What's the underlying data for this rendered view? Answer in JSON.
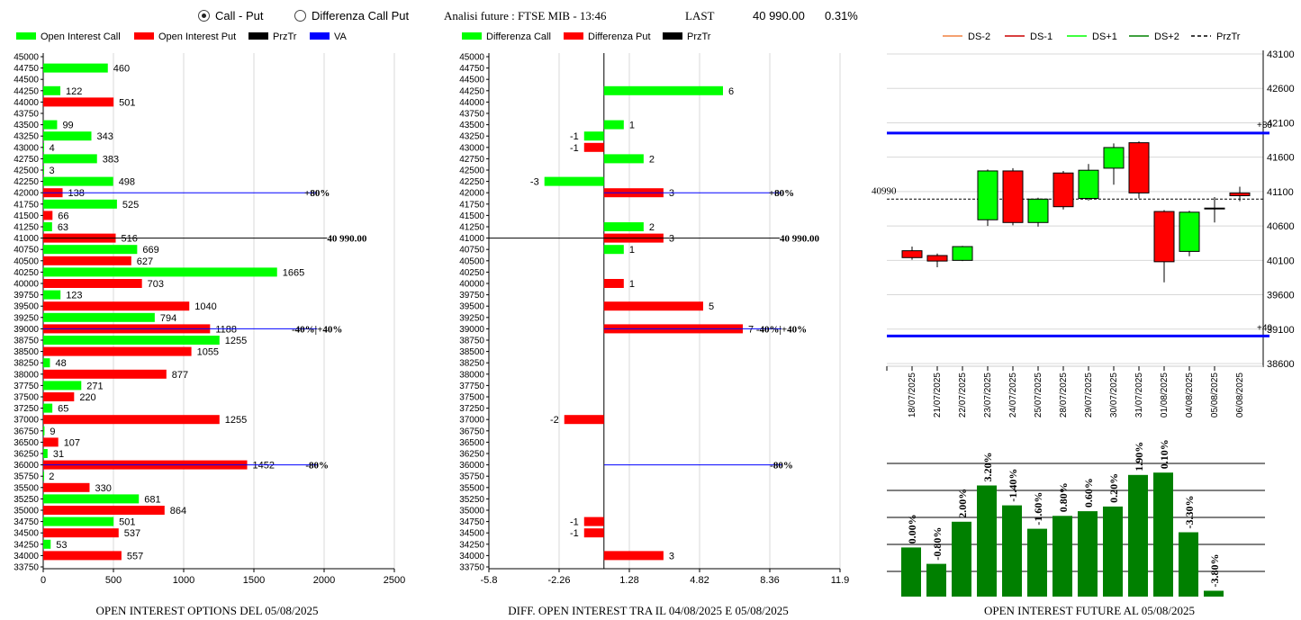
{
  "header": {
    "radio_call_put": "Call - Put",
    "radio_diff": "Differenza Call Put",
    "analysis_title": "Analisi future : FTSE MIB - 13:46",
    "last_label": "LAST",
    "last_value": "40 990.00",
    "last_pct": "0.31%"
  },
  "colors": {
    "green": "#00ff00",
    "red": "#ff0000",
    "blue": "#0000ff",
    "dark_green": "#008000",
    "dark_red": "#cc0000",
    "orange": "#f08040"
  },
  "chart_data": [
    {
      "id": "oi",
      "type": "bar",
      "orientation": "horizontal",
      "title": "OPEN INTEREST OPTIONS DEL 05/08/2025",
      "legend": [
        "Open Interest Call",
        "Open Interest Put",
        "PrzTr",
        "VA"
      ],
      "legend_colors": [
        "#00ff00",
        "#ff0000",
        "#000000",
        "#0000ff"
      ],
      "strikes": [
        "45000",
        "44750",
        "44500",
        "44250",
        "44000",
        "43750",
        "43500",
        "43250",
        "43000",
        "42750",
        "42500",
        "42250",
        "42000",
        "41750",
        "41500",
        "41250",
        "41000",
        "40750",
        "40500",
        "40250",
        "40000",
        "39750",
        "39500",
        "39250",
        "39000",
        "38750",
        "38500",
        "38250",
        "38000",
        "37750",
        "37500",
        "37250",
        "37000",
        "36750",
        "36500",
        "36250",
        "36000",
        "35750",
        "35500",
        "35250",
        "35000",
        "34750",
        "34500",
        "34250",
        "34000",
        "33750"
      ],
      "series": [
        {
          "name": "Open Interest Call",
          "color": "#00ff00",
          "values": {
            "44750": 460,
            "44250": 122,
            "43500": 99,
            "43250": 343,
            "43000": 4,
            "42750": 383,
            "42500": 3,
            "42250": 498,
            "41750": 525,
            "41250": 63,
            "40750": 669,
            "40250": 1665,
            "39750": 123,
            "39250": 794,
            "38750": 1255,
            "38250": 48,
            "37750": 271,
            "37250": 65,
            "36750": 9,
            "36250": 31,
            "35750": 2,
            "35250": 681,
            "34750": 501,
            "34250": 53
          }
        },
        {
          "name": "Open Interest Put",
          "color": "#ff0000",
          "values": {
            "44000": 501,
            "42000": 138,
            "41500": 66,
            "41000": 516,
            "40500": 627,
            "40000": 703,
            "39500": 1040,
            "39000": 1188,
            "38500": 1055,
            "38000": 877,
            "37500": 220,
            "37000": 1255,
            "36500": 107,
            "36000": 1452,
            "35500": 330,
            "35000": 864,
            "34500": 537,
            "34000": 557
          }
        }
      ],
      "xlim": [
        0,
        2500
      ],
      "xticks": [
        "0",
        "500",
        "1000",
        "1500",
        "2000",
        "2500"
      ],
      "lines": [
        {
          "label": "+80%",
          "strike": 42000,
          "color": "#0000ff",
          "to": 1950
        },
        {
          "label": "40 990.00",
          "strike": 41000,
          "color": "#000000",
          "to": 2150
        },
        {
          "label": "-40%|+40%",
          "strike": 39000,
          "color": "#0000ff",
          "to": 1950
        },
        {
          "label": "-80%",
          "strike": 36000,
          "color": "#0000ff",
          "to": 1950
        }
      ]
    },
    {
      "id": "diff",
      "type": "bar",
      "orientation": "horizontal",
      "title": "DIFF. OPEN INTEREST TRA IL 04/08/2025 E 05/08/2025",
      "legend": [
        "Differenza Call",
        "Differenza Put",
        "PrzTr"
      ],
      "legend_colors": [
        "#00ff00",
        "#ff0000",
        "#000000"
      ],
      "series": [
        {
          "name": "Differenza Call",
          "color": "#00ff00",
          "values": {
            "44250": 6,
            "43500": 1,
            "43250": -1,
            "42750": 2,
            "42250": -3,
            "41250": 2,
            "40750": 1
          }
        },
        {
          "name": "Differenza Put",
          "color": "#ff0000",
          "values": {
            "43000": -1,
            "42000": 3,
            "41000": 3,
            "40000": 1,
            "39500": 5,
            "39000": 7,
            "37000": -2,
            "34750": -1,
            "34500": -1,
            "34000": 3
          }
        }
      ],
      "xlim": [
        -5.8,
        11.9
      ],
      "xticks": [
        "-5.8",
        "-2.26",
        "1.28",
        "4.82",
        "8.36",
        "11.9"
      ],
      "lines": [
        {
          "label": "+80%",
          "strike": 42000,
          "color": "#0000ff"
        },
        {
          "label": "40 990.00",
          "strike": 41000,
          "color": "#000000"
        },
        {
          "label": "-40%|+40%",
          "strike": 39000,
          "color": "#0000ff"
        },
        {
          "label": "-80%",
          "strike": 36000,
          "color": "#0000ff"
        }
      ]
    },
    {
      "id": "candles",
      "type": "candlestick",
      "legend": [
        "DS-2",
        "DS-1",
        "DS+1",
        "DS+2",
        "PrzTr"
      ],
      "legend_colors": [
        "#f08040",
        "#cc0000",
        "#00ff00",
        "#008000",
        "#000000"
      ],
      "dates": [
        "18/07/2025",
        "21/07/2025",
        "22/07/2025",
        "23/07/2025",
        "24/07/2025",
        "25/07/2025",
        "28/07/2025",
        "29/07/2025",
        "30/07/2025",
        "31/07/2025",
        "01/08/2025",
        "04/08/2025",
        "05/08/2025",
        "06/08/2025"
      ],
      "candles": [
        {
          "o": 40240,
          "c": 40140,
          "h": 40300,
          "l": 40110
        },
        {
          "o": 40170,
          "c": 40090,
          "h": 40200,
          "l": 40000
        },
        {
          "o": 40100,
          "c": 40300,
          "h": 40310,
          "l": 40090
        },
        {
          "o": 40690,
          "c": 41400,
          "h": 41420,
          "l": 40600
        },
        {
          "o": 41400,
          "c": 40650,
          "h": 41440,
          "l": 40610
        },
        {
          "o": 40650,
          "c": 40990,
          "h": 41010,
          "l": 40590
        },
        {
          "o": 41370,
          "c": 40880,
          "h": 41400,
          "l": 40840
        },
        {
          "o": 41000,
          "c": 41410,
          "h": 41500,
          "l": 40970
        },
        {
          "o": 41440,
          "c": 41740,
          "h": 41800,
          "l": 41200
        },
        {
          "o": 41810,
          "c": 41080,
          "h": 41830,
          "l": 41000
        },
        {
          "o": 40810,
          "c": 40080,
          "h": 40830,
          "l": 39780
        },
        {
          "o": 40230,
          "c": 40800,
          "h": 40820,
          "l": 40160
        },
        {
          "o": 40850,
          "c": 40860,
          "h": 41020,
          "l": 40650
        },
        {
          "o": 41080,
          "c": 41040,
          "h": 41170,
          "l": 40960
        }
      ],
      "ylim": [
        38600,
        43100
      ],
      "yticks": [
        "43100",
        "42600",
        "42100",
        "41600",
        "41100",
        "40600",
        "40100",
        "39600",
        "39100",
        "38600"
      ],
      "przTr": 40990,
      "przTr_label": "40990",
      "band_high": 41950,
      "band_low": 39000,
      "band_high_label": "+80",
      "band_low_label": "+40"
    },
    {
      "id": "pct",
      "type": "bar",
      "title": "OPEN INTEREST FUTURE AL 05/08/2025",
      "heights": [
        0.42,
        0.28,
        0.64,
        0.95,
        0.78,
        0.58,
        0.69,
        0.73,
        0.77,
        1.04,
        1.06,
        0.55,
        0.05
      ],
      "labels": [
        "0.00%",
        "-0.80%",
        "2.00%",
        "3.20%",
        "-1.40%",
        "-1.60%",
        "0.80%",
        "0.60%",
        "0.20%",
        "1.90%",
        "0.10%",
        "-3.30%",
        "-3.80%"
      ],
      "color": "#008000"
    }
  ]
}
